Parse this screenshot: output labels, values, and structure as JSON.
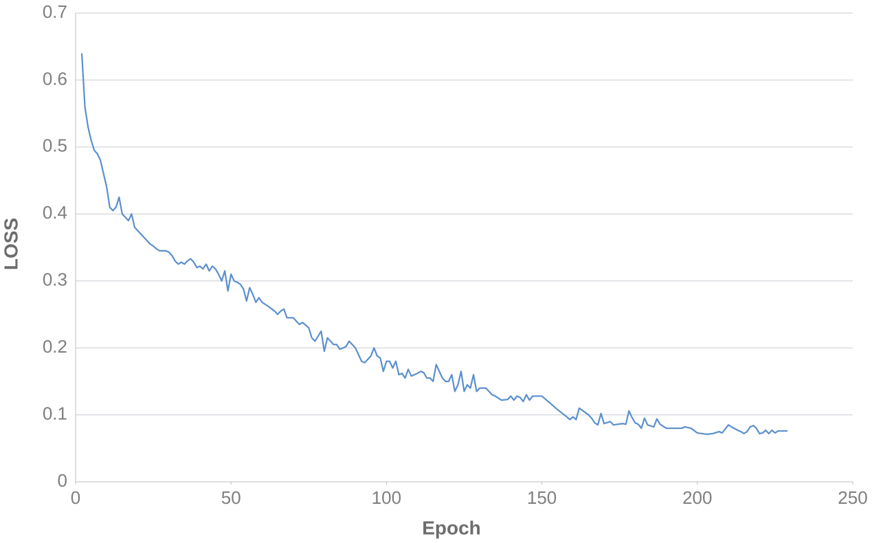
{
  "chart_data": {
    "type": "line",
    "x_label": "Epoch",
    "y_label": "LOSS",
    "xlim": [
      0,
      250
    ],
    "xticks": [
      0,
      50,
      100,
      150,
      200,
      250
    ],
    "ylim": [
      0,
      0.7
    ],
    "yticks": [
      0,
      0.1,
      0.2,
      0.3,
      0.4,
      0.5,
      0.6,
      0.7
    ],
    "grid": true,
    "series": [
      {
        "color": "#5b8fcd",
        "x": [
          2,
          3,
          4,
          5,
          6,
          7,
          8,
          9,
          10,
          11,
          12,
          13,
          14,
          15,
          16,
          17,
          18,
          19,
          20,
          21,
          22,
          23,
          24,
          25,
          26,
          27,
          28,
          29,
          30,
          31,
          32,
          33,
          34,
          35,
          36,
          37,
          38,
          39,
          40,
          41,
          42,
          43,
          44,
          45,
          46,
          47,
          48,
          49,
          50,
          51,
          52,
          53,
          54,
          55,
          56,
          57,
          58,
          59,
          60,
          62,
          64,
          65,
          66,
          67,
          68,
          70,
          72,
          73,
          75,
          76,
          77,
          79,
          80,
          81,
          82,
          83,
          84,
          85,
          87,
          88,
          90,
          91,
          92,
          93,
          95,
          96,
          97,
          98,
          99,
          100,
          101,
          102,
          103,
          104,
          105,
          106,
          107,
          108,
          110,
          111,
          112,
          113,
          114,
          115,
          116,
          117,
          118,
          119,
          120,
          121,
          122,
          123,
          124,
          125,
          126,
          127,
          128,
          129,
          130,
          132,
          134,
          135,
          137,
          139,
          140,
          141,
          142,
          143,
          144,
          145,
          146,
          147,
          148,
          150,
          152,
          155,
          158,
          159,
          160,
          161,
          162,
          165,
          166,
          167,
          168,
          169,
          170,
          172,
          173,
          176,
          177,
          178,
          179,
          180,
          181,
          182,
          183,
          184,
          186,
          187,
          188,
          190,
          195,
          196,
          198,
          200,
          203,
          205,
          207,
          208,
          210,
          211,
          213,
          214,
          215,
          216,
          217,
          218,
          219,
          220,
          221,
          222,
          223,
          224,
          225,
          226,
          229
        ],
        "values": [
          0.64,
          0.56,
          0.53,
          0.51,
          0.495,
          0.49,
          0.48,
          0.46,
          0.44,
          0.41,
          0.405,
          0.41,
          0.425,
          0.4,
          0.395,
          0.39,
          0.4,
          0.38,
          0.375,
          0.37,
          0.365,
          0.36,
          0.355,
          0.352,
          0.348,
          0.345,
          0.345,
          0.345,
          0.343,
          0.338,
          0.33,
          0.325,
          0.328,
          0.325,
          0.33,
          0.333,
          0.328,
          0.32,
          0.322,
          0.318,
          0.325,
          0.315,
          0.322,
          0.318,
          0.31,
          0.3,
          0.315,
          0.285,
          0.31,
          0.3,
          0.298,
          0.295,
          0.288,
          0.27,
          0.29,
          0.28,
          0.268,
          0.275,
          0.268,
          0.262,
          0.255,
          0.25,
          0.255,
          0.258,
          0.245,
          0.245,
          0.235,
          0.238,
          0.23,
          0.215,
          0.21,
          0.225,
          0.195,
          0.215,
          0.21,
          0.205,
          0.205,
          0.198,
          0.202,
          0.21,
          0.2,
          0.19,
          0.18,
          0.178,
          0.188,
          0.2,
          0.188,
          0.185,
          0.165,
          0.18,
          0.18,
          0.17,
          0.18,
          0.16,
          0.162,
          0.155,
          0.168,
          0.158,
          0.162,
          0.165,
          0.163,
          0.155,
          0.155,
          0.15,
          0.175,
          0.165,
          0.155,
          0.15,
          0.15,
          0.16,
          0.135,
          0.145,
          0.165,
          0.135,
          0.145,
          0.14,
          0.16,
          0.135,
          0.14,
          0.14,
          0.13,
          0.128,
          0.122,
          0.123,
          0.128,
          0.122,
          0.128,
          0.126,
          0.12,
          0.13,
          0.122,
          0.128,
          0.128,
          0.128,
          0.12,
          0.108,
          0.097,
          0.093,
          0.097,
          0.093,
          0.11,
          0.1,
          0.095,
          0.088,
          0.085,
          0.102,
          0.087,
          0.09,
          0.085,
          0.087,
          0.086,
          0.106,
          0.096,
          0.088,
          0.086,
          0.08,
          0.095,
          0.085,
          0.082,
          0.094,
          0.086,
          0.08,
          0.08,
          0.082,
          0.08,
          0.073,
          0.071,
          0.072,
          0.075,
          0.073,
          0.085,
          0.082,
          0.077,
          0.075,
          0.072,
          0.075,
          0.082,
          0.084,
          0.08,
          0.072,
          0.073,
          0.077,
          0.072,
          0.077,
          0.073,
          0.076,
          0.076
        ]
      }
    ]
  }
}
